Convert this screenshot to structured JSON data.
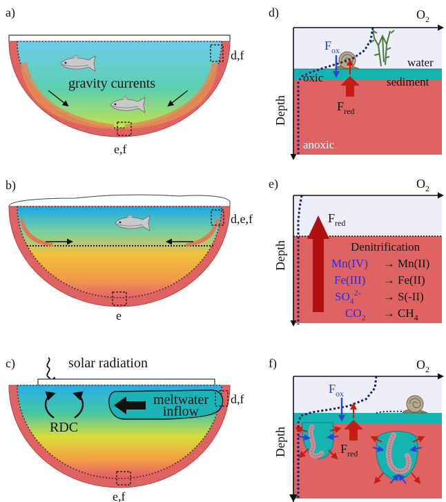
{
  "colors": {
    "sediment": "#e06363",
    "sediment_dark": "#cf5151",
    "oxic_layer": "#14b4b1",
    "air": "#eeeef8",
    "oxygen_curve": "#1c1f6e",
    "flux_red": "#c51d14",
    "flux_blue": "#2546d8",
    "ion_blue": "#2a2ad6",
    "ice": "#ffffff",
    "gravity_water_top": "#7fd0e6",
    "gravity_water_bottom": "#c3e25a",
    "meltwater": "#1ab4b6"
  },
  "panel_a": {
    "label": "a)",
    "annotation": "gravity currents",
    "box_labels": [
      "d,f",
      "e,f"
    ]
  },
  "panel_b": {
    "label": "b)",
    "box_labels": [
      "d,e,f",
      "e"
    ]
  },
  "panel_c": {
    "label": "c)",
    "solar": "solar radiation",
    "rdc": "RDC",
    "meltwater": [
      "meltwater",
      "inflow"
    ],
    "box_labels": [
      "d,f",
      "e,f"
    ]
  },
  "panel_d": {
    "label": "d)",
    "o2": "O",
    "o2_sub": "2",
    "depth": "Depth",
    "water": "water",
    "oxic": "oxic",
    "sediment": "sediment",
    "anoxic": "anoxic",
    "f_ox": "F",
    "f_ox_sub": "ox",
    "f_red": "F",
    "f_red_sub": "red"
  },
  "panel_e": {
    "label": "e)",
    "o2": "O",
    "o2_sub": "2",
    "depth": "Depth",
    "f_red": "F",
    "f_red_sub": "red",
    "denitrification": "Denitrification",
    "reactions": [
      {
        "lhs": "Mn(IV)",
        "rhs": "Mn(II)"
      },
      {
        "lhs": "Fe(III)",
        "rhs": "Fe(II)"
      },
      {
        "lhs": "SO",
        "lhs_sub": "4",
        "lhs_sup": "2-",
        "rhs": "S(-II)"
      },
      {
        "lhs": "CO",
        "lhs_sub": "2",
        "rhs": "CH",
        "rhs_sub": "4"
      }
    ],
    "arrow_glyph": "→"
  },
  "panel_f": {
    "label": "f)",
    "o2": "O",
    "o2_sub": "2",
    "depth": "Depth",
    "f_ox": "F",
    "f_ox_sub": "ox",
    "f_red": "F",
    "f_red_sub": "red"
  }
}
